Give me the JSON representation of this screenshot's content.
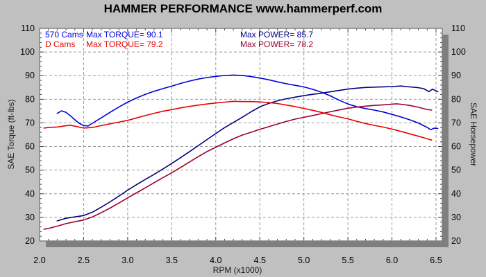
{
  "title": "HAMMER PERFORMANCE www.hammerperf.com",
  "legend": {
    "row1": {
      "series": "570 Cams",
      "torque": "Max TORQUE= 90.1",
      "power": "Max POWER= 85.7"
    },
    "row2": {
      "series": "D Cams",
      "torque": "Max TORQUE= 79.2",
      "power": "Max POWER= 78.2"
    }
  },
  "axes": {
    "left_label": "SAE Torque (ft-lbs)",
    "right_label": "SAE Horsepower",
    "x_label": "RPM (x1000)",
    "y_ticks": [
      110,
      100,
      90,
      80,
      70,
      60,
      50,
      40,
      30,
      20
    ],
    "x_ticks": [
      "2.0",
      "2.5",
      "3.0",
      "3.5",
      "4.0",
      "4.5",
      "5.0",
      "5.5",
      "6.0",
      "6.5"
    ]
  },
  "colors": {
    "background": "#c0c0c0",
    "plot_bg": "#ffffff",
    "shadow": "#7f7f7f",
    "border": "#808080",
    "grid": "#999999",
    "tick": "#444444",
    "text": "#000000",
    "torque_570": "#0000d8",
    "power_570": "#000080",
    "torque_d": "#e80000",
    "power_d": "#990030"
  },
  "chart_data": {
    "type": "line",
    "title": "HAMMER PERFORMANCE www.hammerperf.com",
    "xlabel": "RPM (x1000)",
    "ylabel_left": "SAE Torque (ft-lbs)",
    "ylabel_right": "SAE Horsepower",
    "x_range": [
      2.0,
      6.57
    ],
    "y_range": [
      20,
      110
    ],
    "x_major_step": 0.5,
    "y_major_step": 10,
    "grid": "dashed",
    "legend_position": "top-left-inside",
    "series": [
      {
        "name": "570 Cams Torque",
        "color_key": "torque_570",
        "max_label": 90.1,
        "points": [
          [
            2.2,
            74.0
          ],
          [
            2.25,
            75.2
          ],
          [
            2.3,
            74.6
          ],
          [
            2.35,
            73.2
          ],
          [
            2.4,
            71.5
          ],
          [
            2.45,
            70.0
          ],
          [
            2.5,
            69.0
          ],
          [
            2.55,
            68.7
          ],
          [
            2.6,
            69.8
          ],
          [
            2.7,
            72.0
          ],
          [
            2.8,
            74.3
          ],
          [
            2.9,
            76.5
          ],
          [
            3.0,
            78.6
          ],
          [
            3.1,
            80.4
          ],
          [
            3.2,
            82.0
          ],
          [
            3.3,
            83.4
          ],
          [
            3.4,
            84.6
          ],
          [
            3.5,
            85.7
          ],
          [
            3.6,
            86.9
          ],
          [
            3.7,
            87.9
          ],
          [
            3.8,
            88.7
          ],
          [
            3.9,
            89.3
          ],
          [
            4.0,
            89.7
          ],
          [
            4.1,
            90.0
          ],
          [
            4.2,
            90.1
          ],
          [
            4.3,
            89.9
          ],
          [
            4.4,
            89.4
          ],
          [
            4.5,
            88.8
          ],
          [
            4.6,
            88.1
          ],
          [
            4.7,
            87.3
          ],
          [
            4.8,
            86.6
          ],
          [
            4.9,
            86.0
          ],
          [
            5.0,
            85.4
          ],
          [
            5.1,
            84.4
          ],
          [
            5.2,
            83.2
          ],
          [
            5.3,
            81.6
          ],
          [
            5.4,
            79.7
          ],
          [
            5.5,
            78.0
          ],
          [
            5.6,
            76.8
          ],
          [
            5.7,
            75.9
          ],
          [
            5.8,
            75.2
          ],
          [
            5.9,
            74.4
          ],
          [
            6.0,
            73.4
          ],
          [
            6.1,
            72.4
          ],
          [
            6.2,
            71.3
          ],
          [
            6.3,
            70.0
          ],
          [
            6.4,
            68.2
          ],
          [
            6.44,
            67.3
          ],
          [
            6.48,
            68.0
          ],
          [
            6.52,
            67.6
          ]
        ]
      },
      {
        "name": "570 Cams Power",
        "color_key": "power_570",
        "max_label": 85.7,
        "points": [
          [
            2.2,
            28.5
          ],
          [
            2.3,
            29.6
          ],
          [
            2.4,
            30.1
          ],
          [
            2.5,
            30.6
          ],
          [
            2.6,
            32.0
          ],
          [
            2.7,
            34.1
          ],
          [
            2.8,
            36.4
          ],
          [
            2.9,
            38.9
          ],
          [
            3.0,
            41.5
          ],
          [
            3.1,
            43.9
          ],
          [
            3.2,
            46.2
          ],
          [
            3.3,
            48.4
          ],
          [
            3.4,
            50.7
          ],
          [
            3.5,
            53.0
          ],
          [
            3.6,
            55.4
          ],
          [
            3.7,
            57.8
          ],
          [
            3.8,
            60.3
          ],
          [
            3.9,
            62.8
          ],
          [
            4.0,
            65.3
          ],
          [
            4.1,
            67.8
          ],
          [
            4.2,
            70.0
          ],
          [
            4.3,
            72.2
          ],
          [
            4.4,
            74.6
          ],
          [
            4.5,
            76.8
          ],
          [
            4.6,
            78.3
          ],
          [
            4.7,
            79.5
          ],
          [
            4.8,
            80.4
          ],
          [
            4.9,
            81.1
          ],
          [
            5.0,
            81.7
          ],
          [
            5.1,
            82.2
          ],
          [
            5.2,
            82.6
          ],
          [
            5.3,
            83.1
          ],
          [
            5.4,
            83.6
          ],
          [
            5.5,
            84.1
          ],
          [
            5.6,
            84.5
          ],
          [
            5.7,
            84.8
          ],
          [
            5.8,
            85.0
          ],
          [
            5.9,
            85.2
          ],
          [
            6.0,
            85.4
          ],
          [
            6.1,
            85.7
          ],
          [
            6.2,
            85.4
          ],
          [
            6.3,
            85.1
          ],
          [
            6.36,
            84.7
          ],
          [
            6.42,
            83.4
          ],
          [
            6.46,
            84.4
          ],
          [
            6.52,
            83.2
          ]
        ]
      },
      {
        "name": "D Cams Torque",
        "color_key": "torque_d",
        "max_label": 79.2,
        "points": [
          [
            2.05,
            67.8
          ],
          [
            2.1,
            68.0
          ],
          [
            2.2,
            68.3
          ],
          [
            2.3,
            68.9
          ],
          [
            2.35,
            69.2
          ],
          [
            2.4,
            68.8
          ],
          [
            2.5,
            68.0
          ],
          [
            2.6,
            68.2
          ],
          [
            2.7,
            68.9
          ],
          [
            2.8,
            69.6
          ],
          [
            2.9,
            70.2
          ],
          [
            3.0,
            70.9
          ],
          [
            3.1,
            71.9
          ],
          [
            3.2,
            72.9
          ],
          [
            3.3,
            73.9
          ],
          [
            3.4,
            74.8
          ],
          [
            3.5,
            75.6
          ],
          [
            3.6,
            76.4
          ],
          [
            3.7,
            77.1
          ],
          [
            3.8,
            77.7
          ],
          [
            3.9,
            78.2
          ],
          [
            4.0,
            78.6
          ],
          [
            4.1,
            78.9
          ],
          [
            4.2,
            79.2
          ],
          [
            4.3,
            79.0
          ],
          [
            4.4,
            78.9
          ],
          [
            4.5,
            78.7
          ],
          [
            4.6,
            78.4
          ],
          [
            4.7,
            78.0
          ],
          [
            4.8,
            77.4
          ],
          [
            4.9,
            76.8
          ],
          [
            5.0,
            76.1
          ],
          [
            5.1,
            75.4
          ],
          [
            5.2,
            74.6
          ],
          [
            5.3,
            73.6
          ],
          [
            5.4,
            72.7
          ],
          [
            5.5,
            71.9
          ],
          [
            5.6,
            70.8
          ],
          [
            5.7,
            69.8
          ],
          [
            5.8,
            68.9
          ],
          [
            5.9,
            68.1
          ],
          [
            6.0,
            67.2
          ],
          [
            6.1,
            66.2
          ],
          [
            6.2,
            65.2
          ],
          [
            6.3,
            64.2
          ],
          [
            6.4,
            63.2
          ],
          [
            6.45,
            62.7
          ]
        ]
      },
      {
        "name": "D Cams Power",
        "color_key": "power_d",
        "max_label": 78.2,
        "points": [
          [
            2.05,
            25.0
          ],
          [
            2.1,
            25.4
          ],
          [
            2.2,
            26.3
          ],
          [
            2.3,
            27.3
          ],
          [
            2.4,
            28.0
          ],
          [
            2.5,
            28.7
          ],
          [
            2.6,
            30.0
          ],
          [
            2.7,
            31.8
          ],
          [
            2.8,
            33.8
          ],
          [
            2.9,
            36.0
          ],
          [
            3.0,
            38.3
          ],
          [
            3.1,
            40.5
          ],
          [
            3.2,
            42.7
          ],
          [
            3.3,
            44.9
          ],
          [
            3.4,
            47.0
          ],
          [
            3.5,
            49.0
          ],
          [
            3.6,
            51.2
          ],
          [
            3.7,
            53.4
          ],
          [
            3.8,
            55.6
          ],
          [
            3.9,
            57.7
          ],
          [
            4.0,
            59.5
          ],
          [
            4.1,
            61.3
          ],
          [
            4.2,
            63.1
          ],
          [
            4.3,
            64.7
          ],
          [
            4.4,
            66.0
          ],
          [
            4.5,
            67.3
          ],
          [
            4.6,
            68.5
          ],
          [
            4.7,
            69.7
          ],
          [
            4.8,
            70.8
          ],
          [
            4.9,
            71.8
          ],
          [
            5.0,
            72.5
          ],
          [
            5.1,
            73.2
          ],
          [
            5.2,
            73.9
          ],
          [
            5.3,
            74.6
          ],
          [
            5.4,
            75.3
          ],
          [
            5.5,
            76.0
          ],
          [
            5.6,
            76.5
          ],
          [
            5.7,
            76.9
          ],
          [
            5.8,
            77.3
          ],
          [
            5.9,
            77.6
          ],
          [
            6.0,
            78.0
          ],
          [
            6.05,
            78.2
          ],
          [
            6.1,
            78.1
          ],
          [
            6.2,
            77.6
          ],
          [
            6.3,
            76.8
          ],
          [
            6.4,
            75.8
          ],
          [
            6.45,
            75.4
          ]
        ]
      }
    ]
  }
}
